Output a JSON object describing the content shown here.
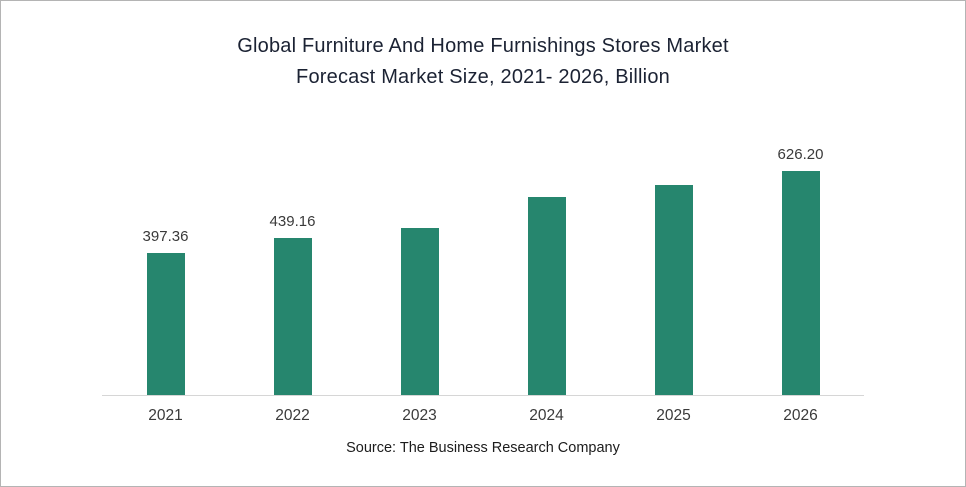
{
  "chart_data": {
    "type": "bar",
    "title": "Global Furniture And Home Furnishings Stores Market Forecast Market Size, 2021- 2026, Billion",
    "title_line1": "Global Furniture And Home Furnishings Stores Market",
    "title_line2": "Forecast Market Size, 2021- 2026, Billion",
    "categories": [
      "2021",
      "2022",
      "2023",
      "2024",
      "2025",
      "2026"
    ],
    "values": [
      397.36,
      439.16,
      467,
      554,
      587,
      626.2
    ],
    "data_labels": [
      "397.36",
      "439.16",
      "",
      "",
      "",
      "626.20"
    ],
    "ylim": [
      0,
      660
    ],
    "bar_color": "#26866E",
    "grid": false,
    "legend": false,
    "xlabel": "",
    "ylabel": "",
    "source": "Source: The Business Research Company"
  }
}
